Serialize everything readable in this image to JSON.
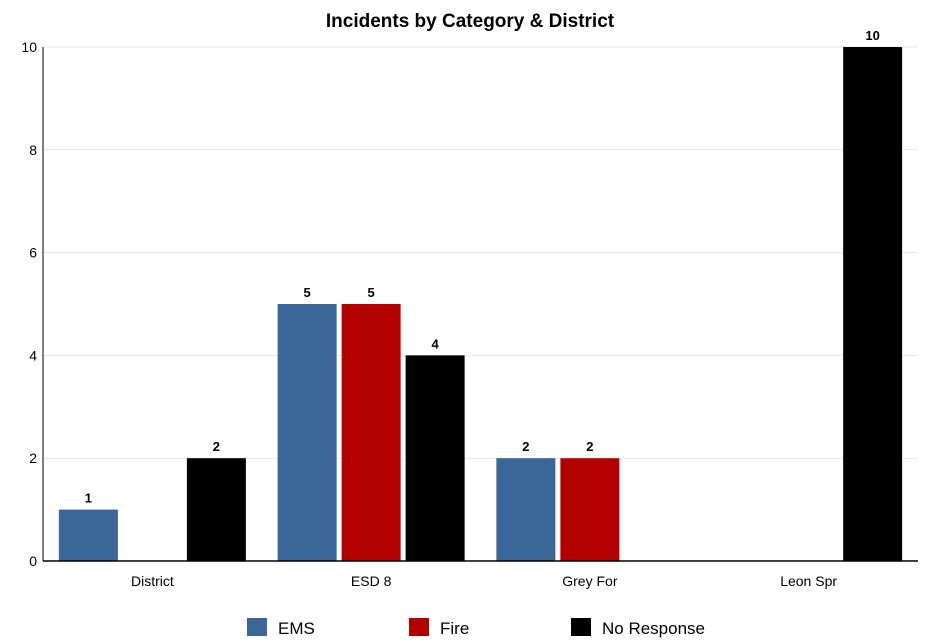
{
  "chart_data": {
    "type": "bar",
    "title": "Incidents by Category & District",
    "xlabel": "",
    "ylabel": "",
    "categories": [
      "District",
      "ESD 8",
      "Grey For",
      "Leon Spr"
    ],
    "series": [
      {
        "name": "EMS",
        "color": "#3a6698",
        "values": [
          1,
          5,
          2,
          0
        ]
      },
      {
        "name": "Fire",
        "color": "#b30000",
        "values": [
          0,
          5,
          2,
          0
        ]
      },
      {
        "name": "No Response",
        "color": "#000000",
        "values": [
          2,
          4,
          0,
          10
        ]
      }
    ],
    "ylim": [
      0,
      10
    ],
    "yticks": [
      "0",
      "2",
      "4",
      "6",
      "8",
      "10"
    ],
    "grid": true,
    "legend_position": "bottom"
  }
}
